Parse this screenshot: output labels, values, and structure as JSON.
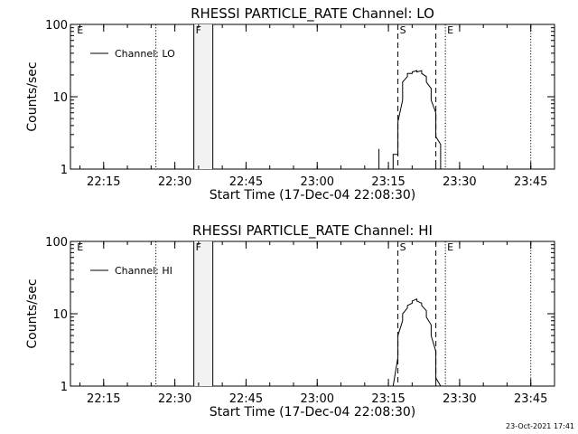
{
  "footer": {
    "timestamp": "23-Oct-2021 17:41"
  },
  "chart_data": [
    {
      "type": "line",
      "title": "RHESSI PARTICLE_RATE Channel: LO",
      "xlabel": "Start Time (17-Dec-04 22:08:30)",
      "ylabel": "Counts/sec",
      "yscale": "log",
      "ylim": [
        1,
        100
      ],
      "xlim": [
        "22:08",
        "23:50"
      ],
      "yticks": [
        {
          "value": 1,
          "label": "1"
        },
        {
          "value": 10,
          "label": "10"
        },
        {
          "value": 100,
          "label": "100"
        }
      ],
      "xticks": [
        {
          "value": "22:15",
          "label": "22:15"
        },
        {
          "value": "22:30",
          "label": "22:30"
        },
        {
          "value": "22:45",
          "label": "22:45"
        },
        {
          "value": "23:00",
          "label": "23:00"
        },
        {
          "value": "23:15",
          "label": "23:15"
        },
        {
          "value": "23:30",
          "label": "23:30"
        },
        {
          "value": "23:45",
          "label": "23:45"
        }
      ],
      "legend": {
        "placement": "top-left",
        "entries": [
          "Channel: LO"
        ]
      },
      "grid": false,
      "markers": [
        {
          "kind": "dotted",
          "t": "22:26",
          "label": ""
        },
        {
          "kind": "dotted",
          "t": "23:27",
          "label": ""
        },
        {
          "kind": "dotted",
          "t": "23:45",
          "label": ""
        },
        {
          "kind": "dashed",
          "t": "23:17",
          "label": ""
        },
        {
          "kind": "dashed",
          "t": "23:25",
          "label": ""
        }
      ],
      "region_labels": [
        {
          "t": "22:09",
          "label": "E"
        },
        {
          "t": "22:34",
          "label": "F"
        },
        {
          "t": "23:17",
          "label": "S"
        },
        {
          "t": "23:27",
          "label": "E"
        }
      ],
      "flare_box": {
        "start": "22:34",
        "end": "22:38"
      },
      "series": [
        {
          "name": "Channel: LO",
          "points": [
            [
              "23:13",
              1.0
            ],
            [
              "23:13",
              1.9
            ],
            [
              "23:13",
              1.0
            ],
            [
              "23:16",
              1.0
            ],
            [
              "23:16",
              1.6
            ],
            [
              "23:17",
              1.6
            ],
            [
              "23:17",
              4.5
            ],
            [
              "23:18",
              9.0
            ],
            [
              "23:18",
              12.0
            ],
            [
              "23:18",
              16.0
            ],
            [
              "23:19",
              19.0
            ],
            [
              "23:19",
              21.0
            ],
            [
              "23:20",
              21.0
            ],
            [
              "23:20",
              22.0
            ],
            [
              "23:21",
              23.0
            ],
            [
              "23:21",
              22.0
            ],
            [
              "23:22",
              23.0
            ],
            [
              "23:22",
              21.0
            ],
            [
              "23:23",
              19.0
            ],
            [
              "23:23",
              16.0
            ],
            [
              "23:24",
              13.0
            ],
            [
              "23:24",
              9.0
            ],
            [
              "23:25",
              6.0
            ],
            [
              "23:25",
              4.0
            ],
            [
              "23:25",
              2.8
            ],
            [
              "23:26",
              2.2
            ],
            [
              "23:26",
              1.5
            ],
            [
              "23:26",
              1.2
            ],
            [
              "23:26",
              1.0
            ]
          ]
        }
      ]
    },
    {
      "type": "line",
      "title": "RHESSI PARTICLE_RATE Channel: HI",
      "xlabel": "Start Time (17-Dec-04 22:08:30)",
      "ylabel": "Counts/sec",
      "yscale": "log",
      "ylim": [
        1,
        100
      ],
      "xlim": [
        "22:08",
        "23:50"
      ],
      "yticks": [
        {
          "value": 1,
          "label": "1"
        },
        {
          "value": 10,
          "label": "10"
        },
        {
          "value": 100,
          "label": "100"
        }
      ],
      "xticks": [
        {
          "value": "22:15",
          "label": "22:15"
        },
        {
          "value": "22:30",
          "label": "22:30"
        },
        {
          "value": "22:45",
          "label": "22:45"
        },
        {
          "value": "23:00",
          "label": "23:00"
        },
        {
          "value": "23:15",
          "label": "23:15"
        },
        {
          "value": "23:30",
          "label": "23:30"
        },
        {
          "value": "23:45",
          "label": "23:45"
        }
      ],
      "legend": {
        "placement": "top-left",
        "entries": [
          "Channel: HI"
        ]
      },
      "grid": false,
      "markers": [
        {
          "kind": "dotted",
          "t": "22:26",
          "label": ""
        },
        {
          "kind": "dotted",
          "t": "23:27",
          "label": ""
        },
        {
          "kind": "dotted",
          "t": "23:45",
          "label": ""
        },
        {
          "kind": "dashed",
          "t": "23:17",
          "label": ""
        },
        {
          "kind": "dashed",
          "t": "23:25",
          "label": ""
        }
      ],
      "region_labels": [
        {
          "t": "22:09",
          "label": "E"
        },
        {
          "t": "22:34",
          "label": "F"
        },
        {
          "t": "23:17",
          "label": "S"
        },
        {
          "t": "23:27",
          "label": "E"
        }
      ],
      "flare_box": {
        "start": "22:34",
        "end": "22:38"
      },
      "series": [
        {
          "name": "Channel: HI",
          "points": [
            [
              "23:16",
              1.0
            ],
            [
              "23:17",
              2.5
            ],
            [
              "23:17",
              5.0
            ],
            [
              "23:18",
              8.0
            ],
            [
              "23:18",
              10.0
            ],
            [
              "23:19",
              12.0
            ],
            [
              "23:19",
              13.0
            ],
            [
              "23:20",
              14.0
            ],
            [
              "23:20",
              15.0
            ],
            [
              "23:21",
              16.0
            ],
            [
              "23:21",
              15.0
            ],
            [
              "23:22",
              14.0
            ],
            [
              "23:22",
              13.0
            ],
            [
              "23:23",
              11.0
            ],
            [
              "23:23",
              9.0
            ],
            [
              "23:24",
              7.0
            ],
            [
              "23:24",
              5.0
            ],
            [
              "23:25",
              3.0
            ],
            [
              "23:25",
              2.0
            ],
            [
              "23:25",
              1.3
            ],
            [
              "23:26",
              1.0
            ]
          ]
        }
      ]
    }
  ]
}
